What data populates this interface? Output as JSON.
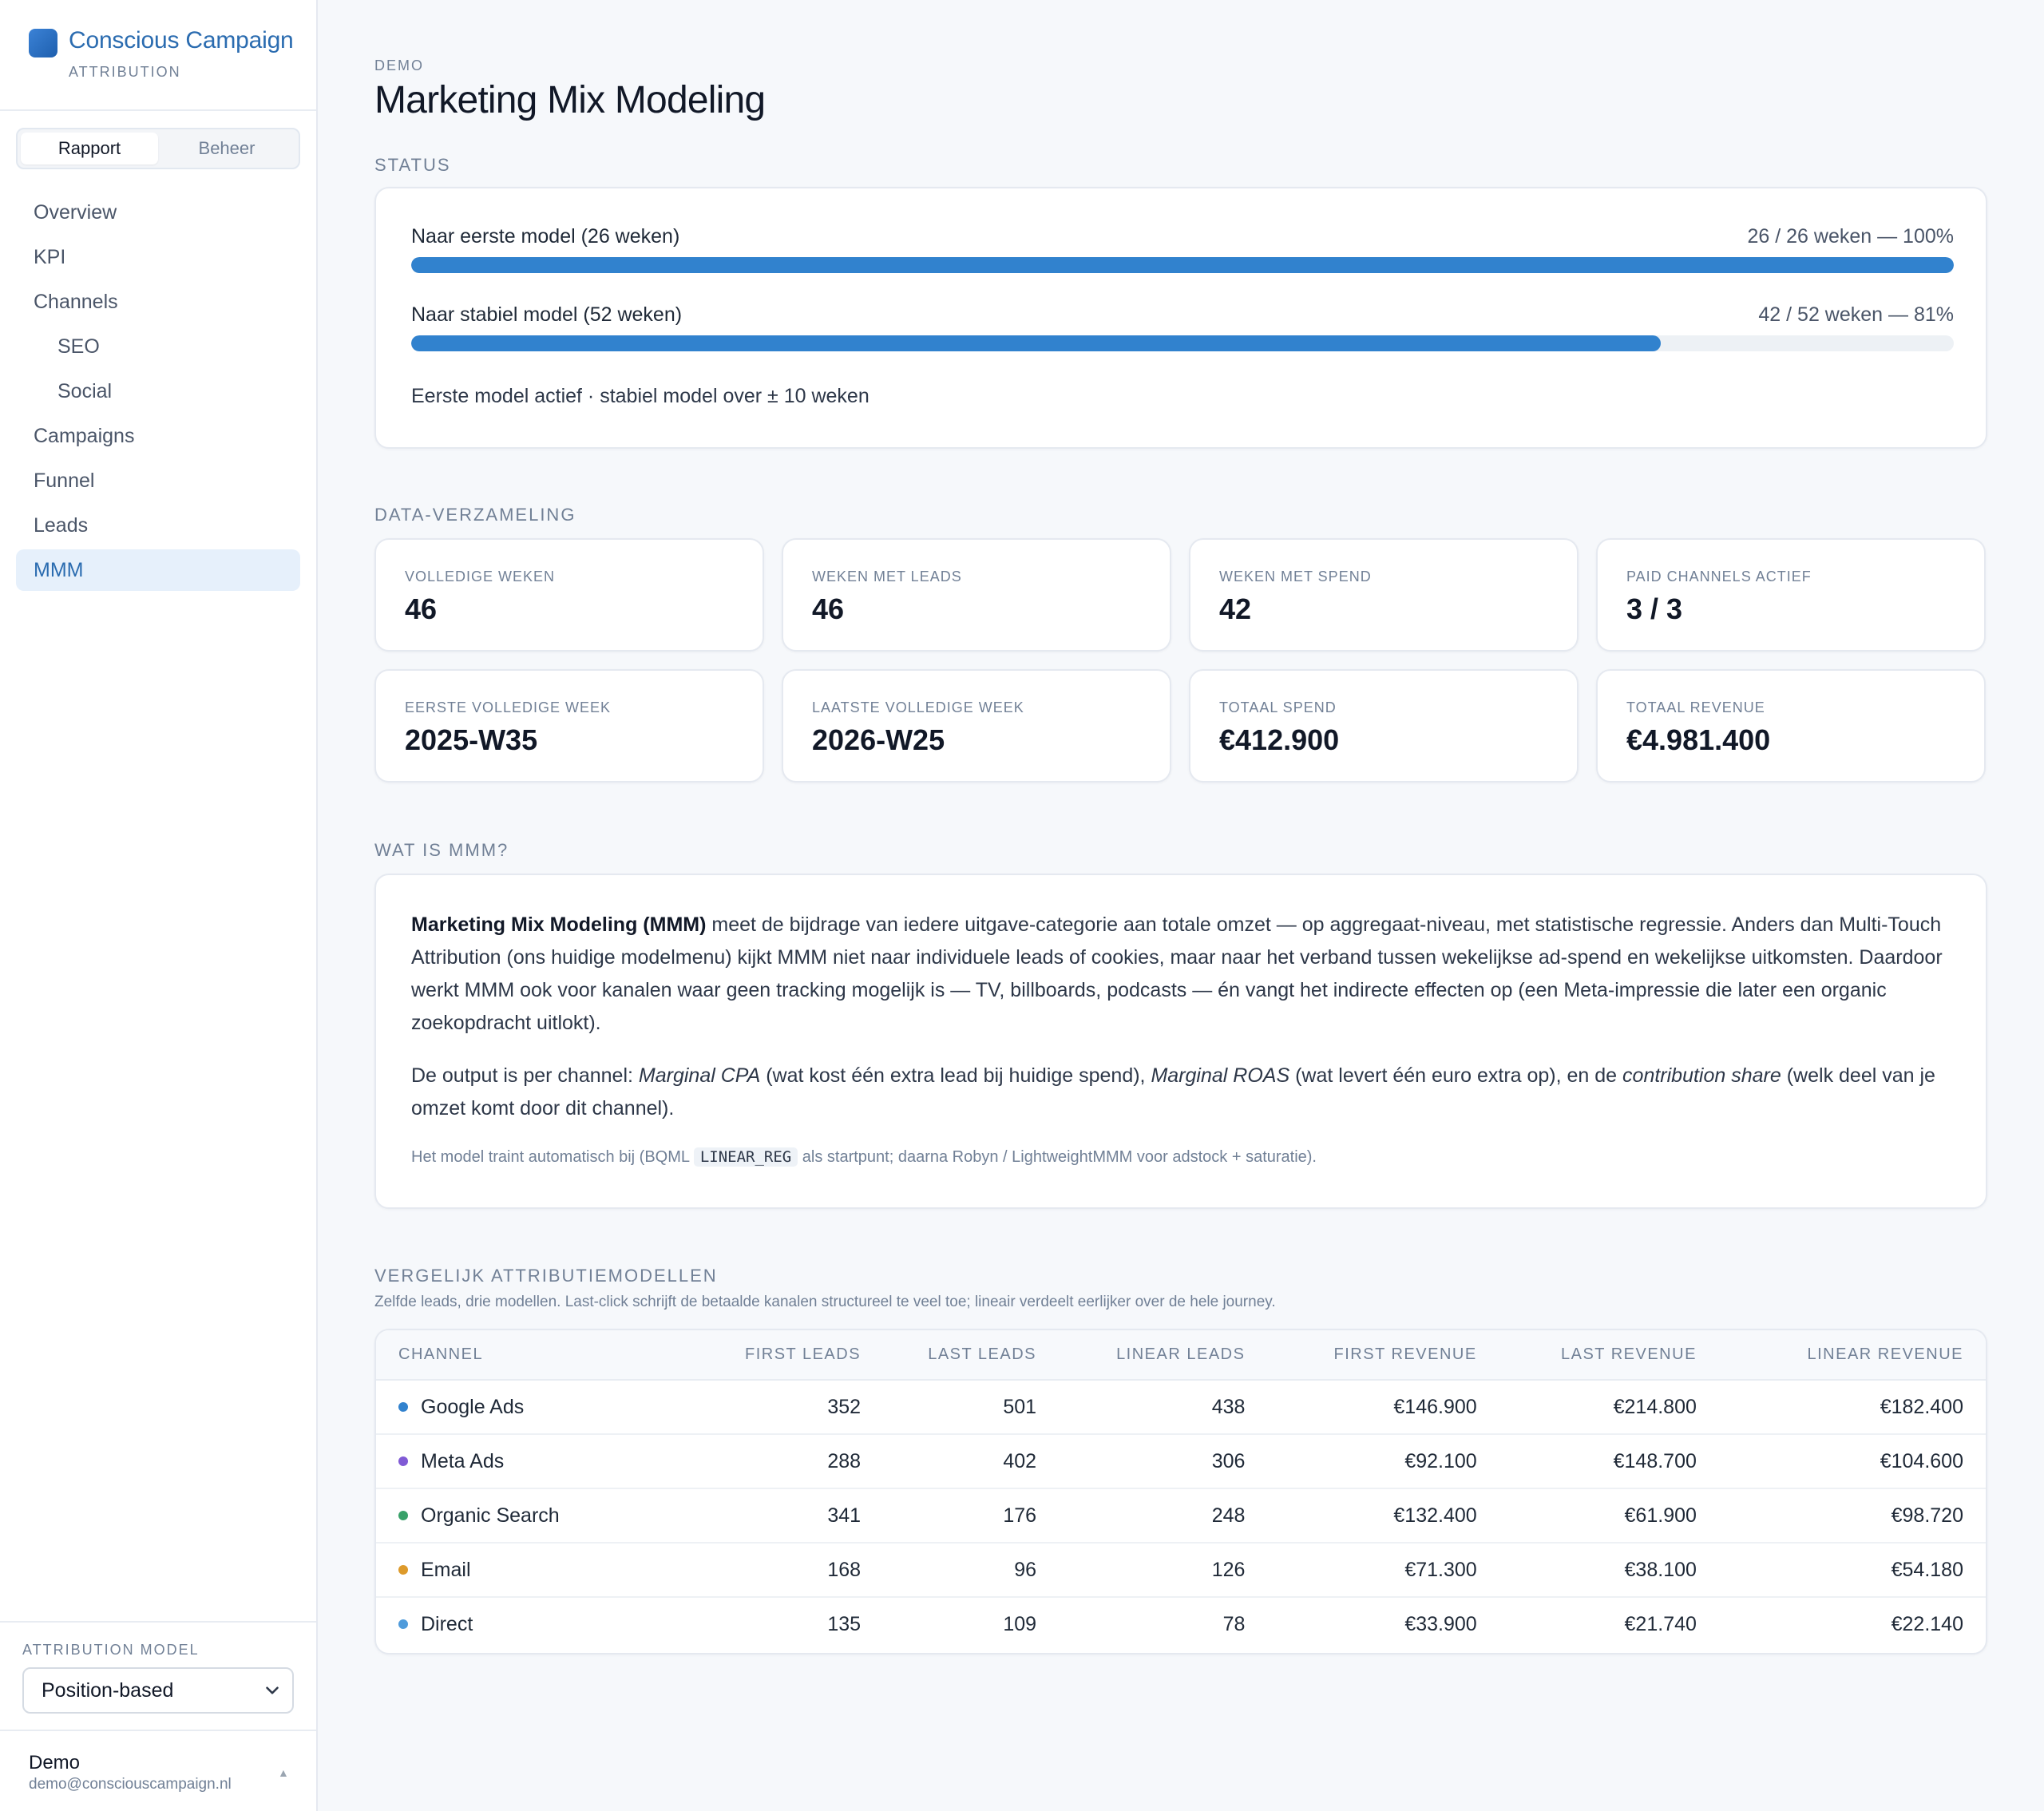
{
  "brand": {
    "name": "Conscious Campaign",
    "sub": "ATTRIBUTION"
  },
  "segment": {
    "tabs": [
      {
        "label": "Rapport",
        "active": true
      },
      {
        "label": "Beheer",
        "active": false
      }
    ]
  },
  "nav": {
    "items": [
      {
        "label": "Overview"
      },
      {
        "label": "KPI"
      },
      {
        "label": "Channels"
      },
      {
        "label": "SEO"
      },
      {
        "label": "Social"
      },
      {
        "label": "Campaigns"
      },
      {
        "label": "Funnel"
      },
      {
        "label": "Leads"
      },
      {
        "label": "MMM",
        "active": true
      }
    ]
  },
  "attribution": {
    "label": "ATTRIBUTION MODEL",
    "selected": "Position-based"
  },
  "user": {
    "name": "Demo",
    "email": "demo@consciouscampaign.nl"
  },
  "page": {
    "eyebrow": "DEMO",
    "title": "Marketing Mix Modeling"
  },
  "status": {
    "label": "STATUS",
    "bars": [
      {
        "label": "Naar eerste model (26 weken)",
        "value": "26 / 26 weken — 100%",
        "percent": 100
      },
      {
        "label": "Naar stabiel model (52 weken)",
        "value": "42 / 52 weken — 81%",
        "percent": 81
      }
    ],
    "note": "Eerste model actief · stabiel model over ± 10 weken"
  },
  "data_collection": {
    "label": "DATA-VERZAMELING",
    "metrics": [
      {
        "label": "VOLLEDIGE WEKEN",
        "value": "46"
      },
      {
        "label": "WEKEN MET LEADS",
        "value": "46"
      },
      {
        "label": "WEKEN MET SPEND",
        "value": "42"
      },
      {
        "label": "PAID CHANNELS ACTIEF",
        "value": "3 / 3"
      },
      {
        "label": "EERSTE VOLLEDIGE WEEK",
        "value": "2025-W35"
      },
      {
        "label": "LAATSTE VOLLEDIGE WEEK",
        "value": "2026-W25"
      },
      {
        "label": "TOTAAL SPEND",
        "value": "€412.900"
      },
      {
        "label": "TOTAAL REVENUE",
        "value": "€4.981.400"
      }
    ]
  },
  "explain": {
    "label": "WAT IS MMM?",
    "p1_bold": "Marketing Mix Modeling (MMM)",
    "p1_rest": " meet de bijdrage van iedere uitgave-categorie aan totale omzet — op aggregaat-niveau, met statistische regressie. Anders dan Multi-Touch Attribution (ons huidige modelmenu) kijkt MMM niet naar individuele leads of cookies, maar naar het verband tussen wekelijkse ad-spend en wekelijkse uitkomsten. Daardoor werkt MMM ook voor kanalen waar geen tracking mogelijk is — TV, billboards, podcasts — én vangt het indirecte effecten op (een Meta-impressie die later een organic zoekopdracht uitlokt).",
    "p2_a": "De output is per channel: ",
    "p2_i1": "Marginal CPA",
    "p2_b": " (wat kost één extra lead bij huidige spend), ",
    "p2_i2": "Marginal ROAS",
    "p2_c": " (wat levert één euro extra op), en de ",
    "p2_i3": "contribution share",
    "p2_d": " (welk deel van je omzet komt door dit channel).",
    "p3_a": "Het model traint automatisch bij (BQML ",
    "p3_code": "LINEAR_REG",
    "p3_b": " als startpunt; daarna Robyn / LightweightMMM voor adstock + saturatie)."
  },
  "compare": {
    "label": "VERGELIJK ATTRIBUTIEMODELLEN",
    "sub": "Zelfde leads, drie modellen. Last-click schrijft de betaalde kanalen structureel te veel toe; lineair verdeelt eerlijker over de hele journey.",
    "columns": [
      "CHANNEL",
      "FIRST LEADS",
      "LAST LEADS",
      "LINEAR LEADS",
      "FIRST REVENUE",
      "LAST REVENUE",
      "LINEAR REVENUE"
    ],
    "rows": [
      {
        "channel": "Google Ads",
        "color": "#3182ce",
        "cells": [
          "352",
          "501",
          "438",
          "€146.900",
          "€214.800",
          "€182.400"
        ]
      },
      {
        "channel": "Meta Ads",
        "color": "#805ad5",
        "cells": [
          "288",
          "402",
          "306",
          "€92.100",
          "€148.700",
          "€104.600"
        ]
      },
      {
        "channel": "Organic Search",
        "color": "#38a169",
        "cells": [
          "341",
          "176",
          "248",
          "€132.400",
          "€61.900",
          "€98.720"
        ]
      },
      {
        "channel": "Email",
        "color": "#dd9a2b",
        "cells": [
          "168",
          "96",
          "126",
          "€71.300",
          "€38.100",
          "€54.180"
        ]
      },
      {
        "channel": "Direct",
        "color": "#4f9bdb",
        "cells": [
          "135",
          "109",
          "78",
          "€33.900",
          "€21.740",
          "€22.140"
        ]
      }
    ]
  },
  "colors": {
    "accent": "#3182ce",
    "nav_active_bg": "#e6f0fb",
    "brand": "#2b6cb0"
  }
}
